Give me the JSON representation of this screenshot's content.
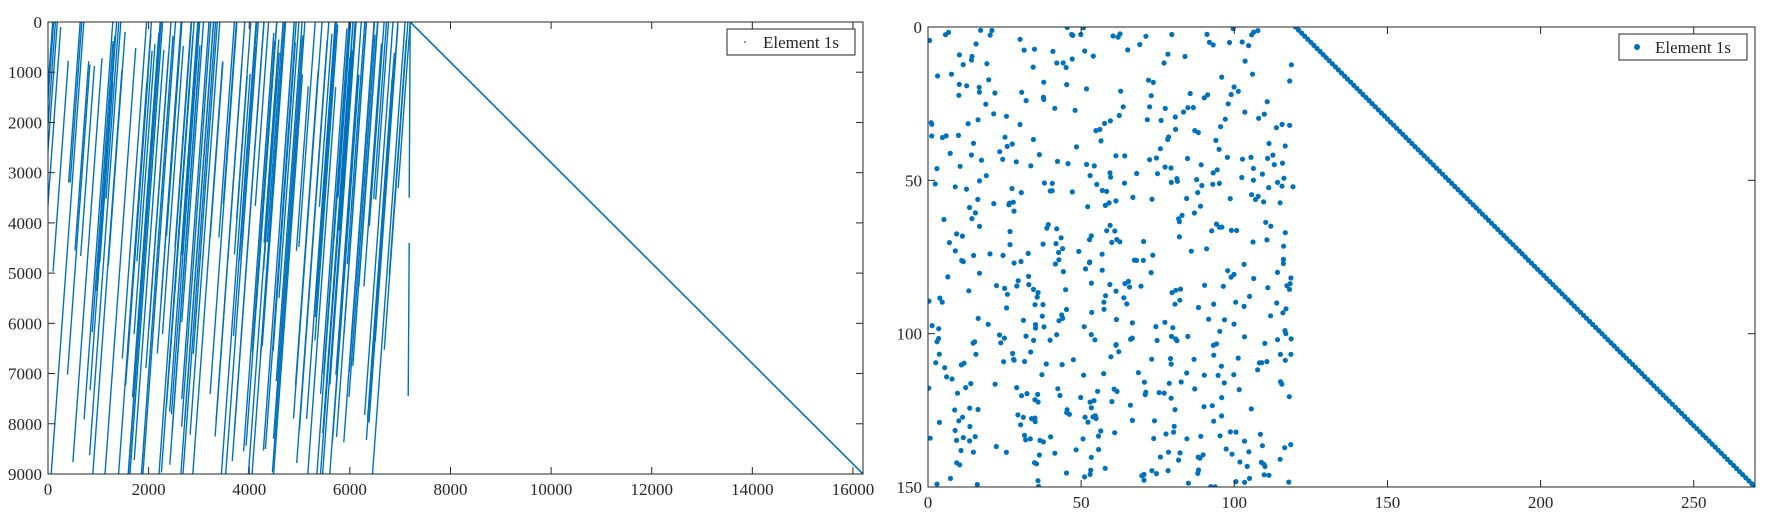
{
  "chart_data": [
    {
      "type": "scatter",
      "title": "",
      "xlabel": "",
      "ylabel": "",
      "xlim": [
        0,
        16200
      ],
      "ylim": [
        0,
        9000
      ],
      "y_reversed": true,
      "marker": "line-segments",
      "color": "#0072BD",
      "xticks": [
        0,
        2000,
        4000,
        6000,
        8000,
        10000,
        12000,
        14000,
        16000
      ],
      "xtick_labels": [
        "0",
        "2000",
        "4000",
        "6000",
        "8000",
        "10000",
        "12000",
        "14000",
        "16000"
      ],
      "yticks": [
        0,
        1000,
        2000,
        3000,
        4000,
        5000,
        6000,
        7000,
        8000,
        9000
      ],
      "ytick_labels": [
        "0",
        "1000",
        "2000",
        "3000",
        "4000",
        "5000",
        "6000",
        "7000",
        "8000",
        "9000"
      ],
      "legend": {
        "entries": [
          "Element 1s"
        ],
        "placement": "top-right"
      },
      "series": [
        {
          "name": "Element 1s",
          "diagonal": {
            "from": [
              7200,
              0
            ],
            "to": [
              16200,
              9000
            ]
          },
          "band": {
            "x_min": 0,
            "x_max": 7200,
            "segment_count": 150,
            "segment_slope": -0.05,
            "y_span": [
              0,
              9000
            ]
          },
          "stub_segments": [
            {
              "x": 7200,
              "y_start": 0,
              "y_end": 3500
            },
            {
              "x": 7180,
              "y_start": 4400,
              "y_end": 7450
            }
          ]
        }
      ]
    },
    {
      "type": "scatter",
      "title": "",
      "xlabel": "",
      "ylabel": "",
      "xlim": [
        0,
        270
      ],
      "ylim": [
        0,
        150
      ],
      "y_reversed": true,
      "marker": "dot",
      "color": "#0072BD",
      "xticks": [
        0,
        50,
        100,
        150,
        200,
        250
      ],
      "xtick_labels": [
        "0",
        "50",
        "100",
        "150",
        "200",
        "250"
      ],
      "yticks": [
        0,
        50,
        100,
        150
      ],
      "ytick_labels": [
        "0",
        "50",
        "100",
        "150"
      ],
      "legend": {
        "entries": [
          "Element 1s"
        ],
        "placement": "top-right"
      },
      "series": [
        {
          "name": "Element 1s",
          "diagonal": {
            "from": [
              120,
              0
            ],
            "to": [
              270,
              150
            ]
          },
          "scatter_region": {
            "x_min": 0,
            "x_max": 120,
            "y_min": 0,
            "y_max": 150,
            "approx_points": 600
          }
        }
      ]
    }
  ]
}
